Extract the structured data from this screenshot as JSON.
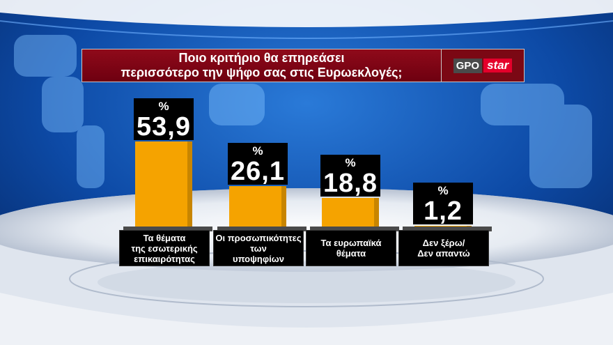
{
  "title": {
    "line1": "Ποιο κριτήριο θα επηρεάσει",
    "line2": "περισσότερο την ψήφο σας στις Ευρωεκλογές;"
  },
  "logo": {
    "gpo": "GPO",
    "star": "star"
  },
  "chart_data": {
    "type": "bar",
    "title": "Ποιο κριτήριο θα επηρεάσει περισσότερο την ψήφο σας στις Ευρωεκλογές;",
    "unit": "%",
    "categories": [
      "Τα θέματα της εσωτερικής επικαιρότητας",
      "Οι προσωπικότητες των υποψηφίων",
      "Τα ευρωπαϊκά θέματα",
      "Δεν ξέρω/ Δεν απαντώ"
    ],
    "category_lines": [
      [
        "Τα θέματα",
        "της εσωτερικής",
        "επικαιρότητας"
      ],
      [
        "Οι προσωπικότητες",
        "των",
        "υποψηφίων"
      ],
      [
        "Τα ευρωπαϊκά",
        "θέματα"
      ],
      [
        "Δεν ξέρω/",
        "Δεν απαντώ"
      ]
    ],
    "values": [
      53.9,
      26.1,
      18.8,
      1.2
    ],
    "value_labels": [
      "53,9",
      "26,1",
      "18,8",
      "1,2"
    ],
    "bar_color": "#f5a300"
  }
}
